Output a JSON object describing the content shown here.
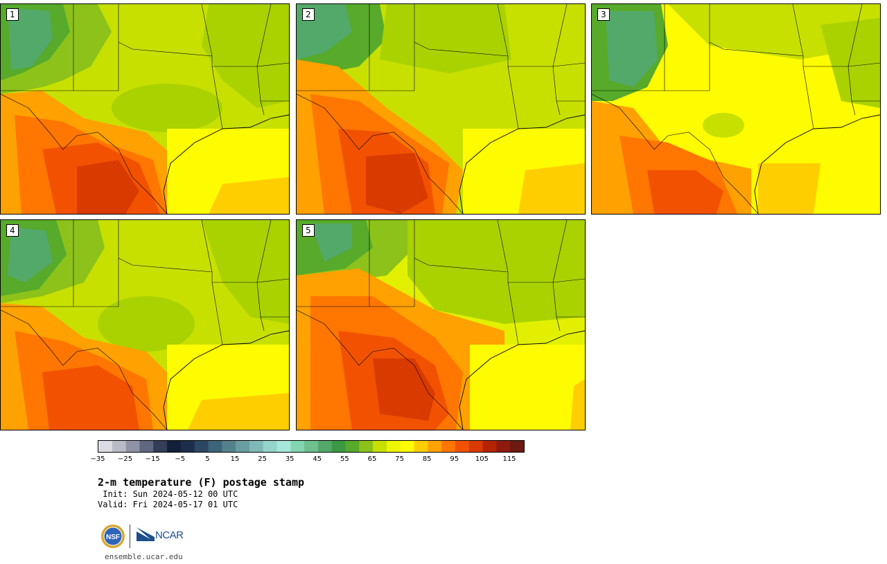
{
  "panels": [
    {
      "id": "1",
      "variant": 0
    },
    {
      "id": "2",
      "variant": 1
    },
    {
      "id": "3",
      "variant": 2
    },
    {
      "id": "4",
      "variant": 3
    },
    {
      "id": "5",
      "variant": 4
    }
  ],
  "colorbar": {
    "colors": [
      "#dcdde4",
      "#b8bac6",
      "#8f93a5",
      "#606780",
      "#343d5a",
      "#142039",
      "#1d2e4d",
      "#2b4763",
      "#3d6478",
      "#548189",
      "#6a9da1",
      "#7fb9b7",
      "#95d3cb",
      "#a5e8da",
      "#83d6b0",
      "#6fbf8f",
      "#53a969",
      "#3c9943",
      "#57aa2a",
      "#8cc21a",
      "#c7e000",
      "#eef500",
      "#fffb00",
      "#ffce00",
      "#ffa100",
      "#ff7600",
      "#f25200",
      "#d93a00",
      "#b52400",
      "#8f1a10",
      "#6c1a12"
    ],
    "tick_labels": [
      "−35",
      "−25",
      "−15",
      "−5",
      "5",
      "15",
      "25",
      "35",
      "45",
      "55",
      "65",
      "75",
      "85",
      "95",
      "105",
      "115"
    ]
  },
  "title": "2-m temperature (F) postage stamp",
  "init_line": " Init: Sun 2024-05-12 00 UTC",
  "valid_line": "Valid: Fri 2024-05-17 01 UTC",
  "logo": {
    "ncar_text": "NCAR",
    "nsf_text": "NSF"
  },
  "url": "ensemble.ucar.edu"
}
